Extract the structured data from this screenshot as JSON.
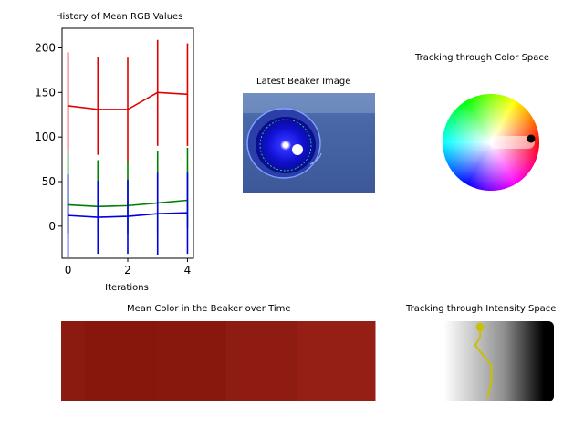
{
  "chart_data": [
    {
      "type": "line",
      "title": "History of Mean RGB Values",
      "xlabel": "Iterations",
      "ylabel": "",
      "xlim": [
        -0.2,
        4.2
      ],
      "ylim": [
        -36,
        222
      ],
      "xticks": [
        0,
        2,
        4
      ],
      "yticks": [
        0,
        50,
        100,
        150,
        200
      ],
      "x": [
        0,
        1,
        2,
        3,
        4
      ],
      "series": [
        {
          "color": "#e00000",
          "values": [
            135,
            131,
            131,
            150,
            148
          ],
          "err_low": [
            85,
            80,
            72,
            90,
            90
          ],
          "err_high": [
            195,
            190,
            189,
            209,
            205
          ]
        },
        {
          "color": "#008000",
          "values": [
            24,
            22,
            23,
            26,
            29
          ],
          "err_low": [
            -8,
            -10,
            -8,
            -8,
            -2
          ],
          "err_high": [
            84,
            74,
            73,
            84,
            88
          ]
        },
        {
          "color": "#0000e0",
          "values": [
            12,
            10,
            11,
            14,
            15
          ],
          "err_low": [
            -35,
            -31,
            -31,
            -32,
            -31
          ],
          "err_high": [
            58,
            51,
            52,
            60,
            60
          ]
        }
      ]
    },
    {
      "type": "image",
      "title": "Latest Beaker Image"
    },
    {
      "type": "scatter",
      "title": "Tracking through Color Space",
      "marker_color": "#000000"
    },
    {
      "type": "heatmap",
      "title": "Mean Color in the Beaker over Time",
      "colors": [
        "#8b1a10",
        "#87160d",
        "#88170e",
        "#8f1c12",
        "#951f14"
      ]
    },
    {
      "type": "line",
      "title": "Tracking through Intensity Space",
      "line_color": "#c8c000",
      "path": [
        [
          0.41,
          0.05
        ],
        [
          0.41,
          0.2
        ],
        [
          0.37,
          0.3
        ],
        [
          0.5,
          0.55
        ],
        [
          0.5,
          0.75
        ],
        [
          0.47,
          0.95
        ]
      ]
    }
  ]
}
